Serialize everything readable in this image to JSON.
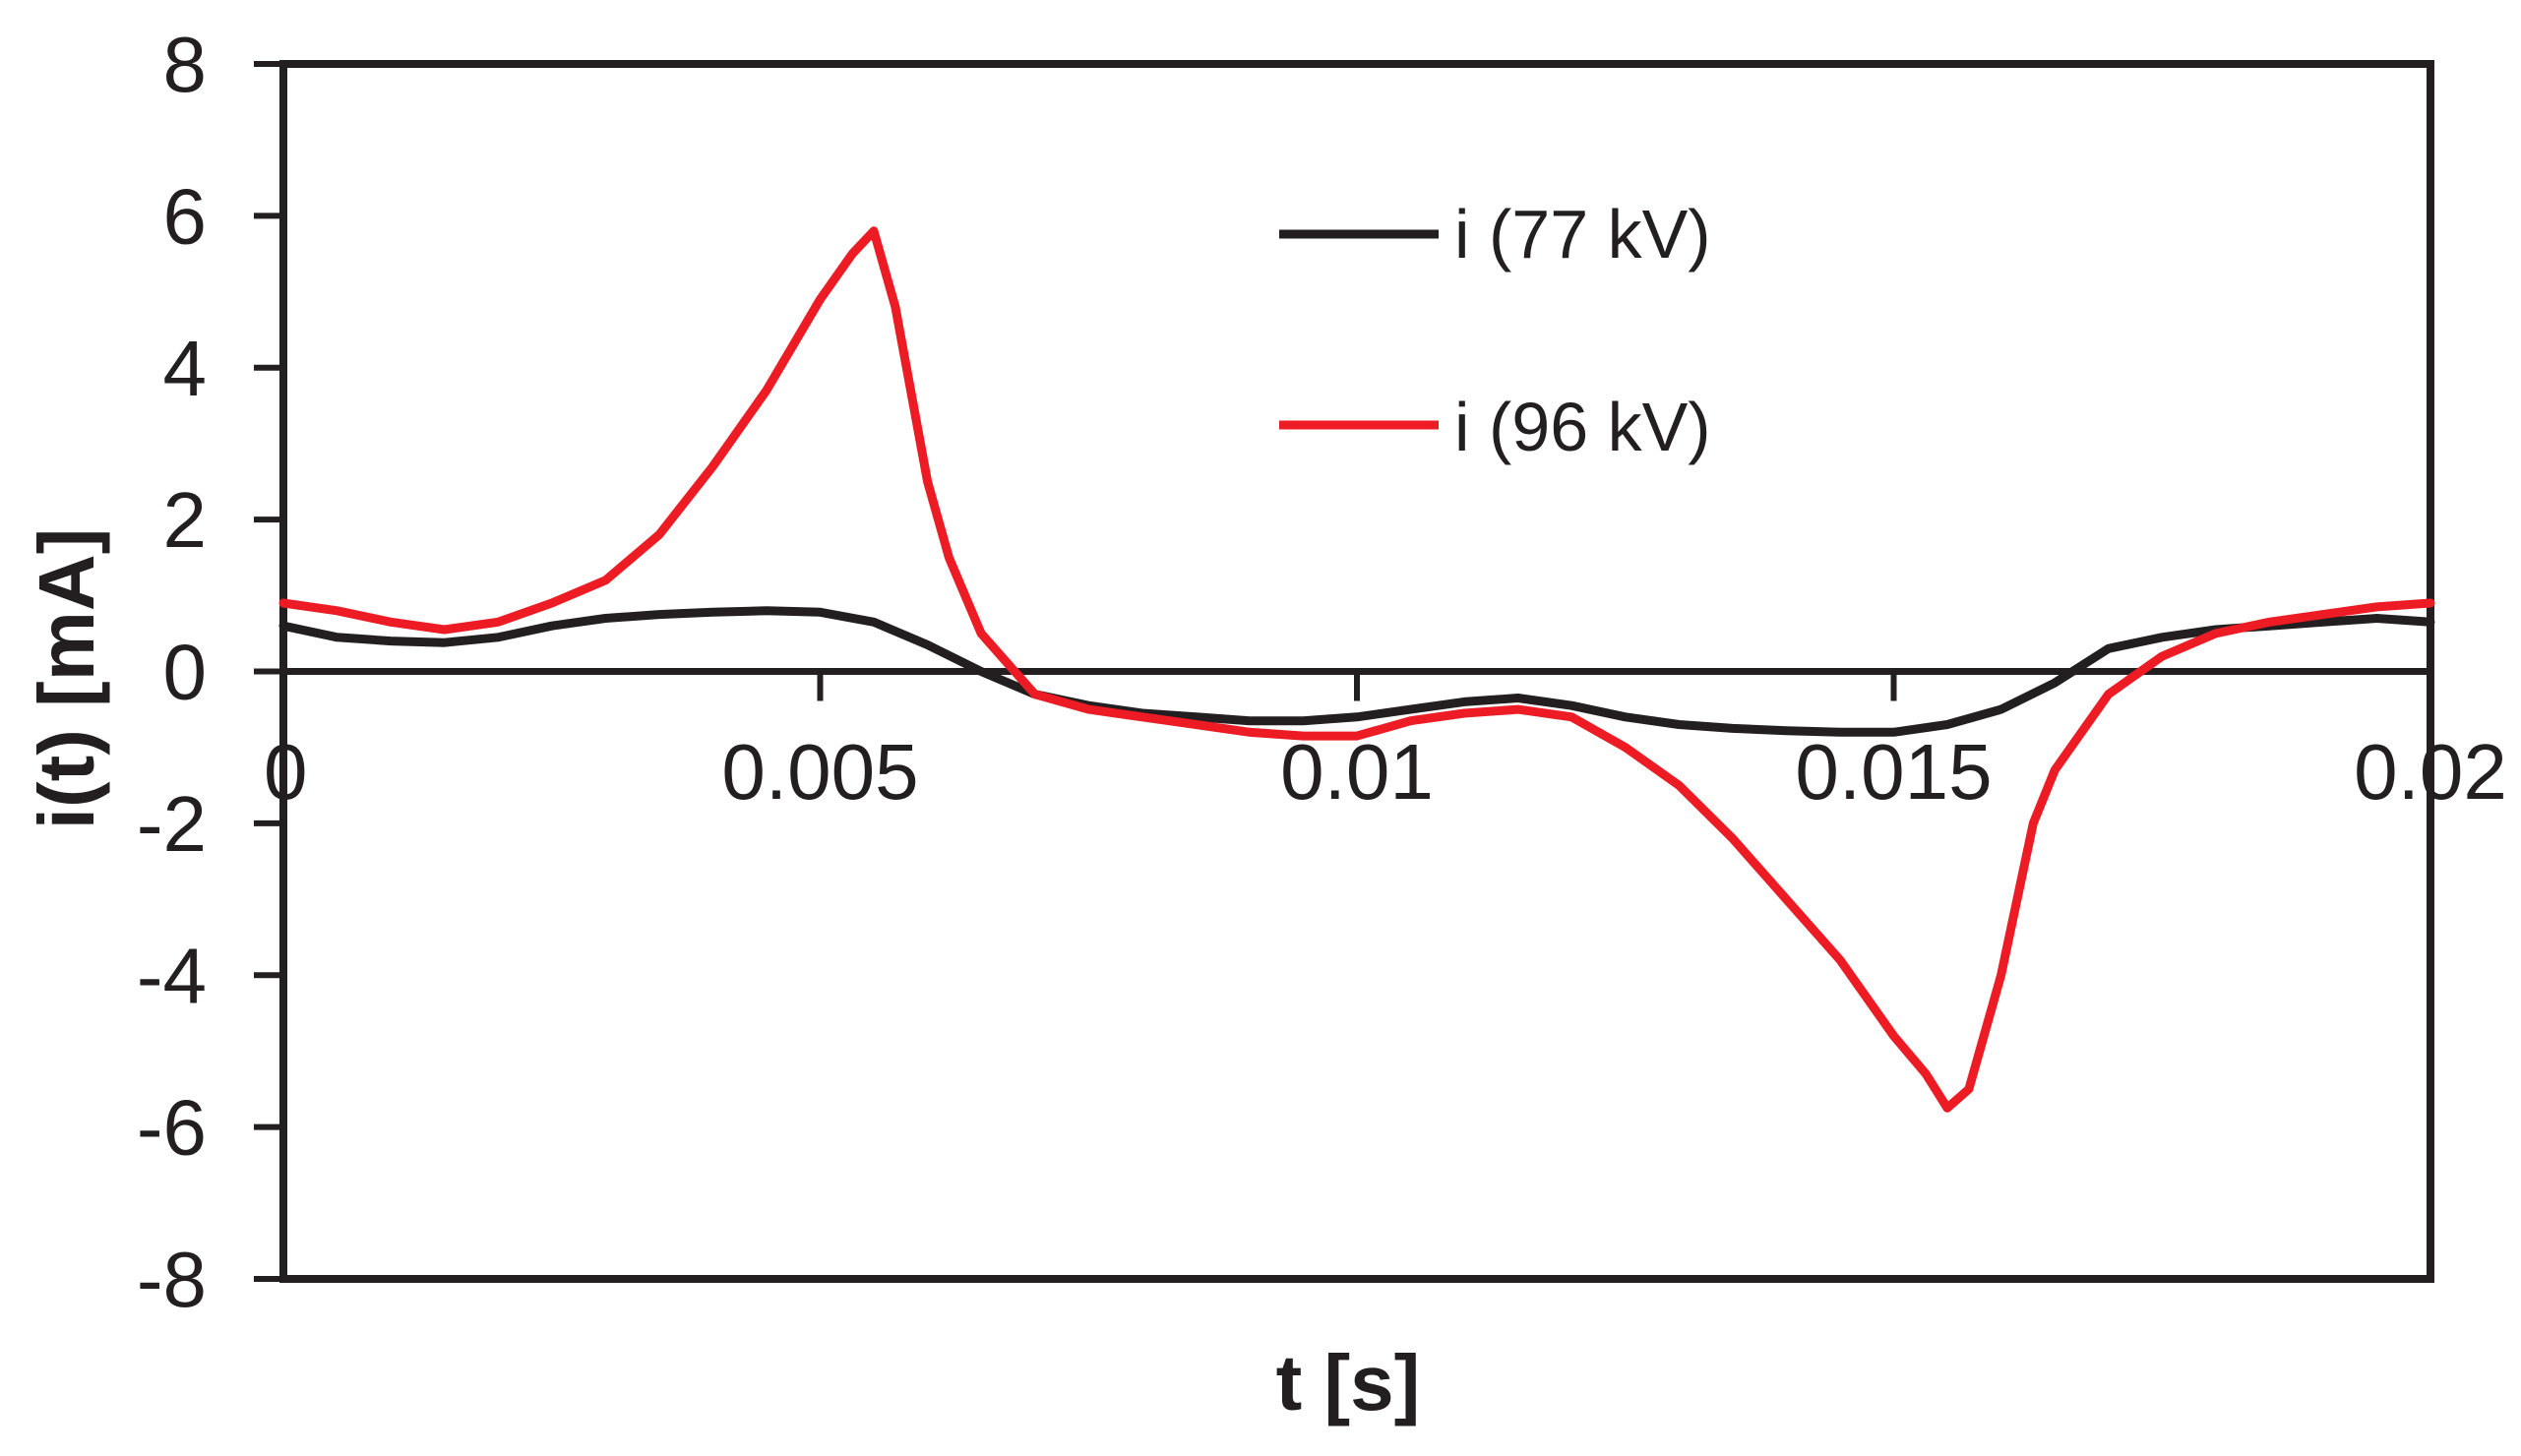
{
  "chart_data": {
    "type": "line",
    "title": "",
    "xlabel": "t [s]",
    "ylabel": "i(t) [mA]",
    "xlim": [
      0,
      0.02
    ],
    "ylim": [
      -8,
      8
    ],
    "x_ticks": [
      0,
      0.005,
      0.01,
      0.015,
      0.02
    ],
    "x_tick_labels": [
      "0",
      "0.005",
      "0.01",
      "0.015",
      "0.02"
    ],
    "y_ticks": [
      8,
      6,
      4,
      2,
      0,
      -2,
      -4,
      -6,
      -8
    ],
    "y_tick_labels": [
      "8",
      "6",
      "4",
      "2",
      "0",
      "-2",
      "-4",
      "-6",
      "-8"
    ],
    "grid": false,
    "legend_position": "top-center",
    "series": [
      {
        "name": "i (77 kV)",
        "color": "#231f20",
        "x": [
          0,
          0.0005,
          0.001,
          0.0015,
          0.002,
          0.0025,
          0.003,
          0.0035,
          0.004,
          0.0045,
          0.005,
          0.0055,
          0.006,
          0.0065,
          0.007,
          0.0075,
          0.008,
          0.0085,
          0.009,
          0.0095,
          0.01,
          0.0105,
          0.011,
          0.0115,
          0.012,
          0.0125,
          0.013,
          0.0135,
          0.014,
          0.0145,
          0.015,
          0.0155,
          0.016,
          0.0165,
          0.017,
          0.0175,
          0.018,
          0.0185,
          0.019,
          0.0195,
          0.02
        ],
        "y": [
          0.6,
          0.45,
          0.4,
          0.38,
          0.45,
          0.6,
          0.7,
          0.75,
          0.78,
          0.8,
          0.78,
          0.65,
          0.35,
          0.0,
          -0.3,
          -0.45,
          -0.55,
          -0.6,
          -0.65,
          -0.65,
          -0.6,
          -0.5,
          -0.4,
          -0.35,
          -0.45,
          -0.6,
          -0.7,
          -0.75,
          -0.78,
          -0.8,
          -0.8,
          -0.7,
          -0.5,
          -0.15,
          0.3,
          0.45,
          0.55,
          0.6,
          0.65,
          0.7,
          0.65
        ]
      },
      {
        "name": "i (96 kV)",
        "color": "#ed1c24",
        "x": [
          0,
          0.0005,
          0.001,
          0.0015,
          0.002,
          0.0025,
          0.003,
          0.0035,
          0.004,
          0.0045,
          0.005,
          0.0053,
          0.0055,
          0.0057,
          0.006,
          0.0062,
          0.0065,
          0.007,
          0.0075,
          0.008,
          0.0085,
          0.009,
          0.0095,
          0.01,
          0.0105,
          0.011,
          0.0115,
          0.012,
          0.0125,
          0.013,
          0.0135,
          0.014,
          0.0145,
          0.015,
          0.0153,
          0.0155,
          0.0157,
          0.016,
          0.0163,
          0.0165,
          0.017,
          0.0175,
          0.018,
          0.0185,
          0.019,
          0.0195,
          0.02
        ],
        "y": [
          0.9,
          0.8,
          0.65,
          0.55,
          0.65,
          0.9,
          1.2,
          1.8,
          2.7,
          3.7,
          4.9,
          5.5,
          5.8,
          4.8,
          2.5,
          1.5,
          0.5,
          -0.3,
          -0.5,
          -0.6,
          -0.7,
          -0.8,
          -0.85,
          -0.85,
          -0.65,
          -0.55,
          -0.5,
          -0.6,
          -1.0,
          -1.5,
          -2.2,
          -3.0,
          -3.8,
          -4.8,
          -5.3,
          -5.75,
          -5.5,
          -4.0,
          -2.0,
          -1.3,
          -0.3,
          0.2,
          0.5,
          0.65,
          0.75,
          0.85,
          0.9
        ]
      }
    ]
  }
}
